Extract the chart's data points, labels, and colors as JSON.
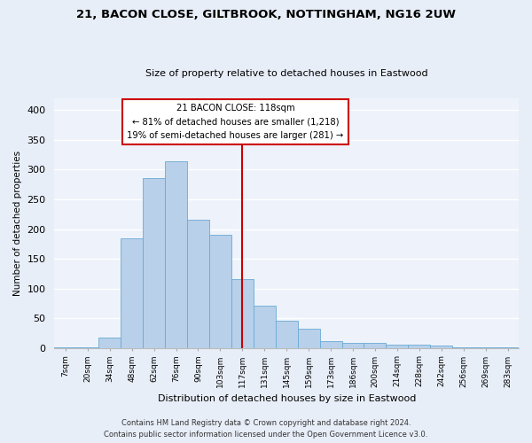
{
  "title_line1": "21, BACON CLOSE, GILTBROOK, NOTTINGHAM, NG16 2UW",
  "title_line2": "Size of property relative to detached houses in Eastwood",
  "xlabel": "Distribution of detached houses by size in Eastwood",
  "ylabel": "Number of detached properties",
  "bar_labels": [
    "7sqm",
    "20sqm",
    "34sqm",
    "48sqm",
    "62sqm",
    "76sqm",
    "90sqm",
    "103sqm",
    "117sqm",
    "131sqm",
    "145sqm",
    "159sqm",
    "173sqm",
    "186sqm",
    "200sqm",
    "214sqm",
    "228sqm",
    "242sqm",
    "256sqm",
    "269sqm",
    "283sqm"
  ],
  "bar_values": [
    1,
    1,
    17,
    184,
    286,
    314,
    216,
    191,
    116,
    71,
    46,
    33,
    12,
    8,
    8,
    5,
    5,
    4,
    1,
    1,
    1
  ],
  "bar_color": "#b8d0ea",
  "bar_edge_color": "#6aaad4",
  "vline_x": 8,
  "vline_color": "#cc0000",
  "annotation_title": "21 BACON CLOSE: 118sqm",
  "annotation_line2": "← 81% of detached houses are smaller (1,218)",
  "annotation_line3": "19% of semi-detached houses are larger (281) →",
  "annotation_box_color": "#cc0000",
  "ylim": [
    0,
    420
  ],
  "yticks": [
    0,
    50,
    100,
    150,
    200,
    250,
    300,
    350,
    400
  ],
  "footer_line1": "Contains HM Land Registry data © Crown copyright and database right 2024.",
  "footer_line2": "Contains public sector information licensed under the Open Government Licence v3.0.",
  "bg_color": "#e8eef8",
  "plot_bg_color": "#eef3fb",
  "grid_color": "#ffffff"
}
